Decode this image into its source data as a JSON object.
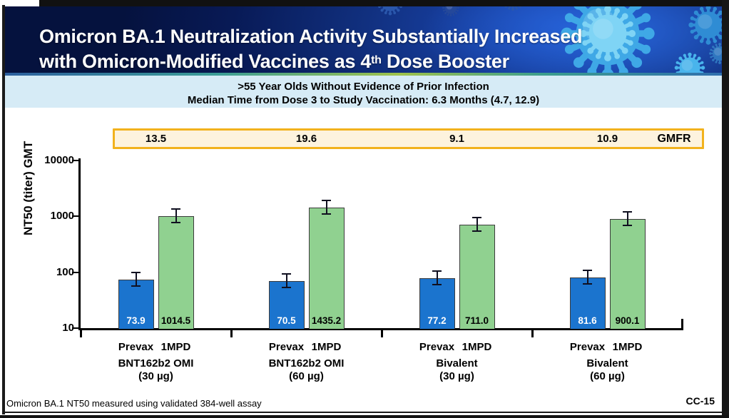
{
  "header": {
    "title_line1": "Omicron BA.1 Neutralization Activity Substantially Increased",
    "title_line2_pre": "with Omicron-Modified Vaccines as 4",
    "title_line2_sup": "th",
    "title_line2_post": " Dose Booster",
    "background_color": "#0a1a5e"
  },
  "subtitle": {
    "line1": ">55 Year Olds Without Evidence of Prior Infection",
    "line2": "Median Time from Dose 3 to Study Vaccination: 6.3 Months (4.7, 12.9)",
    "background_color": "#d6ebf6"
  },
  "gmfr_panel": {
    "label": "GMFR",
    "values": [
      "13.5",
      "19.6",
      "9.1",
      "10.9"
    ],
    "fill_color": "#fdf3de",
    "border_color": "#f2b21d"
  },
  "chart_data": {
    "type": "bar",
    "title": "",
    "xlabel": "",
    "ylabel": "NT50 (titer) GMT",
    "y_scale": "log",
    "ylim": [
      10,
      10000
    ],
    "y_ticks": [
      "10",
      "100",
      "1000",
      "10000"
    ],
    "grid": false,
    "error_bars": true,
    "categories": [
      "BNT162b2 OMI (30 µg)",
      "BNT162b2 OMI (60 µg)",
      "Bivalent (30 µg)",
      "Bivalent (60 µg)"
    ],
    "group_labels": [
      {
        "line1": "BNT162b2 OMI",
        "line2": "(30 µg)"
      },
      {
        "line1": "BNT162b2 OMI",
        "line2": "(60 µg)"
      },
      {
        "line1": "Bivalent",
        "line2": "(30 µg)"
      },
      {
        "line1": "Bivalent",
        "line2": "(60 µg)"
      }
    ],
    "x_sublabels": [
      "Prevax",
      "1MPD"
    ],
    "series": [
      {
        "name": "Prevax",
        "color": "#1b74ce",
        "value_label_color": "#ffffff",
        "values": [
          73.9,
          70.5,
          77.2,
          81.6
        ],
        "value_labels": [
          "73.9",
          "70.5",
          "77.2",
          "81.6"
        ]
      },
      {
        "name": "1MPD",
        "color": "#90d190",
        "value_label_color": "#000000",
        "values": [
          1014.5,
          1435.2,
          711.0,
          900.1
        ],
        "value_labels": [
          "1014.5",
          "1435.2",
          "711.0",
          "900.1"
        ]
      }
    ],
    "gmfr_values": [
      13.5,
      19.6,
      9.1,
      10.9
    ]
  },
  "footer": {
    "note": "Omicron BA.1 NT50 measured using validated 384-well assay",
    "code": "CC-15"
  }
}
